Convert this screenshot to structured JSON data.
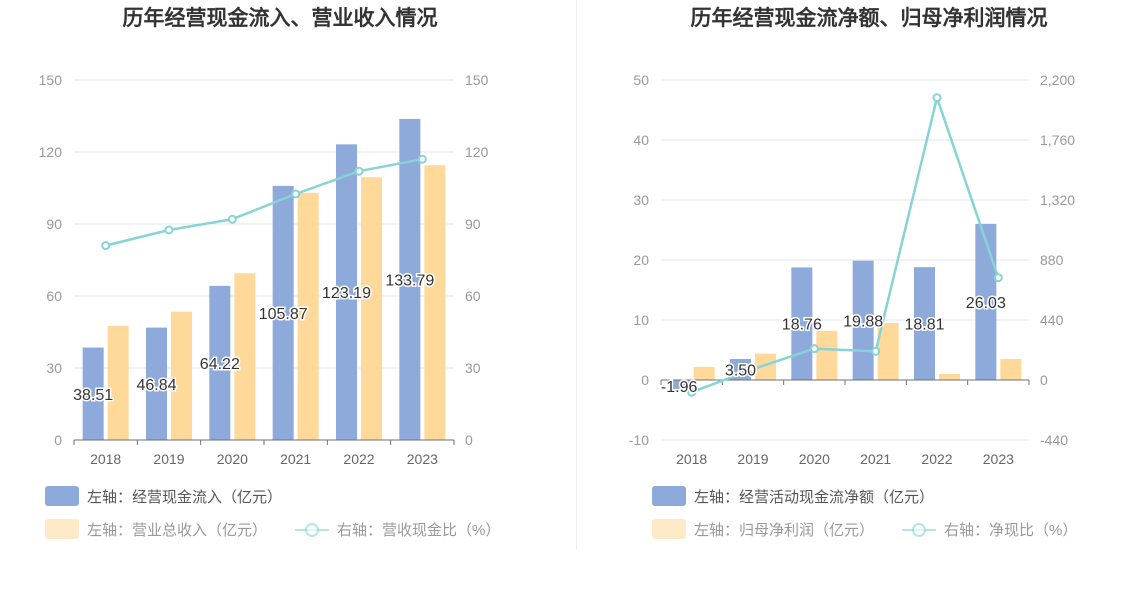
{
  "chart_data": [
    {
      "type": "bar",
      "title": "历年经营现金流入、营业收入情况",
      "categories": [
        "2018",
        "2019",
        "2020",
        "2021",
        "2022",
        "2023"
      ],
      "left_axis": {
        "ticks": [
          "0",
          "30",
          "60",
          "90",
          "120",
          "150"
        ],
        "ylim": [
          0,
          150
        ]
      },
      "right_axis": {
        "ticks": [
          "0",
          "30",
          "60",
          "90",
          "120",
          "150"
        ],
        "ylim": [
          0,
          150
        ]
      },
      "series": [
        {
          "name": "左轴：经营现金流入（亿元）",
          "kind": "bar",
          "axis": "left",
          "color": "#8eaadb",
          "values": [
            38.51,
            46.84,
            64.22,
            105.87,
            123.19,
            133.79
          ],
          "labels": [
            "38.51",
            "46.84",
            "64.22",
            "105.87",
            "123.19",
            "133.79"
          ]
        },
        {
          "name": "左轴：营业总收入（亿元）",
          "kind": "bar",
          "axis": "left",
          "color": "#ffd99a",
          "values": [
            47.5,
            53.5,
            69.5,
            103,
            109.5,
            114.5
          ]
        },
        {
          "name": "右轴：营收现金比（%）",
          "kind": "line",
          "axis": "right",
          "color": "#86d3d8",
          "values": [
            81,
            87.5,
            92,
            102.5,
            112,
            117
          ]
        }
      ],
      "grid": true,
      "legend_position": "bottom"
    },
    {
      "type": "bar",
      "title": "历年经营现金流净额、归母净利润情况",
      "categories": [
        "2018",
        "2019",
        "2020",
        "2021",
        "2022",
        "2023"
      ],
      "left_axis": {
        "ticks": [
          "-10",
          "0",
          "10",
          "20",
          "30",
          "40",
          "50"
        ],
        "ylim": [
          -10,
          50
        ]
      },
      "right_axis": {
        "ticks": [
          "-440",
          "0",
          "440",
          "880",
          "1,320",
          "1,760",
          "2,200"
        ],
        "ylim": [
          -440,
          2200
        ]
      },
      "series": [
        {
          "name": "左轴：经营活动现金流净额（亿元）",
          "kind": "bar",
          "axis": "left",
          "color": "#8eaadb",
          "values": [
            -1.96,
            3.5,
            18.76,
            19.88,
            18.81,
            26.03
          ],
          "labels": [
            "-1.96",
            "3.50",
            "18.76",
            "19.88",
            "18.81",
            "26.03"
          ]
        },
        {
          "name": "左轴：归母净利润（亿元）",
          "kind": "bar",
          "axis": "left",
          "color": "#ffd99a",
          "values": [
            2.2,
            4.4,
            8.2,
            9.5,
            1.0,
            3.5
          ]
        },
        {
          "name": "右轴：净现比（%）",
          "kind": "line",
          "axis": "right",
          "color": "#86d3d8",
          "values": [
            -90,
            80,
            230,
            210,
            2070,
            750
          ]
        }
      ],
      "grid": true,
      "legend_position": "bottom"
    }
  ]
}
